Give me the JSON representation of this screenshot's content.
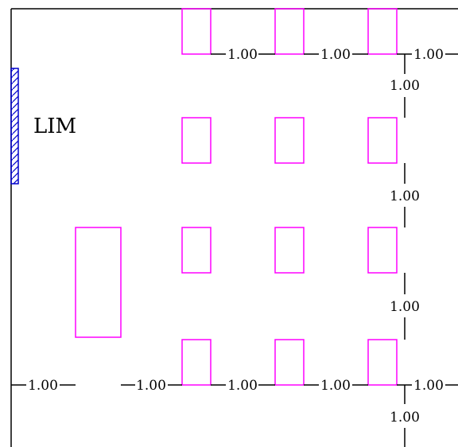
{
  "plan": {
    "label": "LIM",
    "colors": {
      "background": "#ffffff",
      "line": "#000000",
      "element": "#ff00ff",
      "hatch": "#0000cc"
    },
    "dimension_labels": {
      "top_row_1": "1.00",
      "top_row_2": "1.00",
      "top_row_3": "1.00",
      "vertical_1": "1.00",
      "vertical_2": "1.00",
      "vertical_3": "1.00",
      "bottom_row_1": "1.00",
      "bottom_row_2": "1.00",
      "bottom_row_3": "1.00",
      "bottom_row_4": "1.00",
      "bottom_row_5": "1.00",
      "vertical_4": "1.00"
    }
  }
}
